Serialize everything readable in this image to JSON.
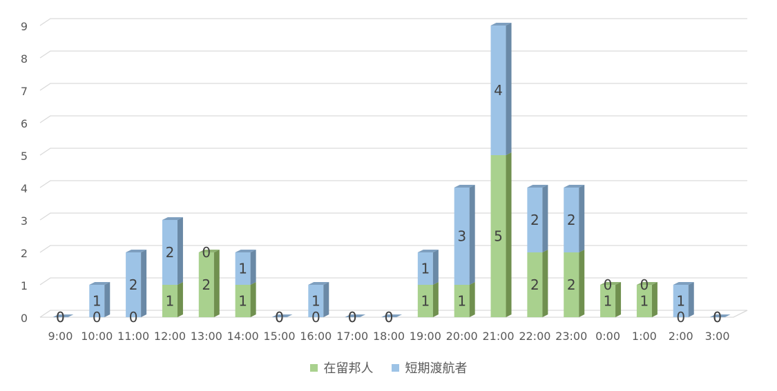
{
  "chart_data": {
    "type": "bar",
    "stacked": true,
    "three_d": true,
    "categories": [
      "9:00",
      "10:00",
      "11:00",
      "12:00",
      "13:00",
      "14:00",
      "15:00",
      "16:00",
      "17:00",
      "18:00",
      "19:00",
      "20:00",
      "21:00",
      "22:00",
      "23:00",
      "0:00",
      "1:00",
      "2:00",
      "3:00"
    ],
    "series": [
      {
        "name": "在留邦人",
        "color": "#a9d18e",
        "side_color": "#70904f",
        "top_color": "#8fb373",
        "values": [
          0,
          0,
          0,
          1,
          2,
          1,
          0,
          0,
          0,
          0,
          1,
          1,
          5,
          2,
          2,
          1,
          1,
          0,
          0
        ]
      },
      {
        "name": "短期渡航者",
        "color": "#9dc3e6",
        "side_color": "#6a89a6",
        "top_color": "#7e9fbf",
        "values": [
          0,
          1,
          2,
          2,
          0,
          1,
          0,
          1,
          0,
          0,
          1,
          3,
          4,
          2,
          2,
          0,
          0,
          1,
          0
        ]
      }
    ],
    "ylim": [
      0,
      9
    ],
    "yticks": [
      0,
      1,
      2,
      3,
      4,
      5,
      6,
      7,
      8,
      9
    ],
    "grid": true,
    "legend_position": "bottom",
    "data_labels": true
  }
}
